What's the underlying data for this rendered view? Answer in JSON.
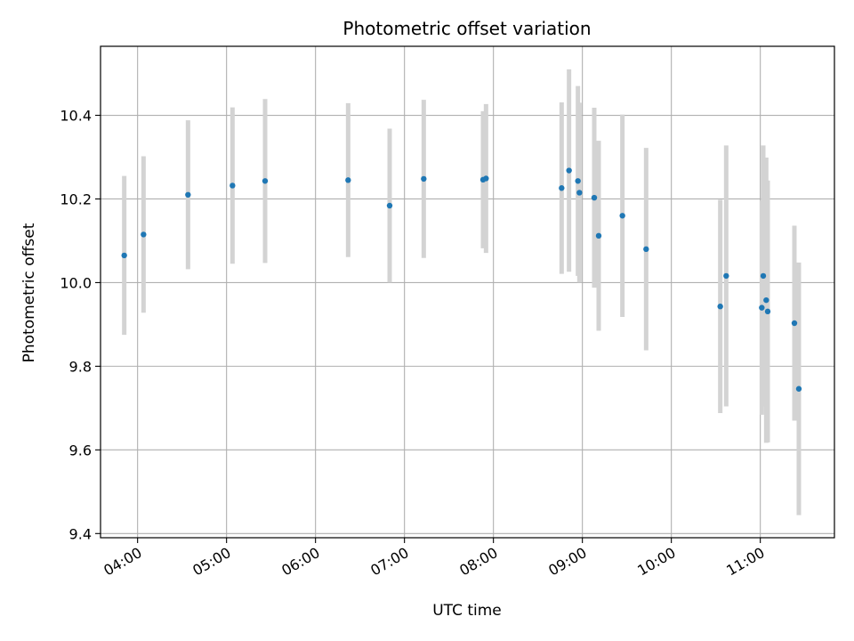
{
  "chart_data": {
    "type": "scatter",
    "title": "Photometric offset variation",
    "xlabel": "UTC time",
    "ylabel": "Photometric offset",
    "xlim": [
      "03:35",
      "11:50"
    ],
    "ylim": [
      9.39,
      10.565
    ],
    "x_ticks": [
      "04:00",
      "05:00",
      "06:00",
      "07:00",
      "08:00",
      "09:00",
      "10:00",
      "11:00"
    ],
    "y_ticks": [
      9.4,
      9.6,
      9.8,
      10.0,
      10.2,
      10.4
    ],
    "y_tick_labels": [
      "9.4",
      "9.6",
      "9.8",
      "10.0",
      "10.2",
      "10.4"
    ],
    "grid": true,
    "point_color": "#1f77b4",
    "errorbar_color": "#d3d3d3",
    "points": [
      {
        "t": "03:51",
        "y": 10.065,
        "err": 0.19
      },
      {
        "t": "04:04",
        "y": 10.115,
        "err": 0.187
      },
      {
        "t": "04:34",
        "y": 10.21,
        "err": 0.178
      },
      {
        "t": "05:04",
        "y": 10.232,
        "err": 0.187
      },
      {
        "t": "05:26",
        "y": 10.243,
        "err": 0.196
      },
      {
        "t": "06:22",
        "y": 10.245,
        "err": 0.184
      },
      {
        "t": "06:50",
        "y": 10.184,
        "err": 0.184
      },
      {
        "t": "07:13",
        "y": 10.248,
        "err": 0.189
      },
      {
        "t": "07:53",
        "y": 10.246,
        "err": 0.164
      },
      {
        "t": "07:55",
        "y": 10.249,
        "err": 0.178
      },
      {
        "t": "08:46",
        "y": 10.226,
        "err": 0.205
      },
      {
        "t": "08:51",
        "y": 10.268,
        "err": 0.242
      },
      {
        "t": "08:57",
        "y": 10.243,
        "err": 0.227
      },
      {
        "t": "08:58",
        "y": 10.215,
        "err": 0.215
      },
      {
        "t": "09:08",
        "y": 10.203,
        "err": 0.215
      },
      {
        "t": "09:11",
        "y": 10.112,
        "err": 0.227
      },
      {
        "t": "09:27",
        "y": 10.16,
        "err": 0.242
      },
      {
        "t": "09:43",
        "y": 10.08,
        "err": 0.242
      },
      {
        "t": "10:33",
        "y": 9.943,
        "err": 0.255
      },
      {
        "t": "10:37",
        "y": 10.016,
        "err": 0.312
      },
      {
        "t": "11:01",
        "y": 9.94,
        "err": 0.256
      },
      {
        "t": "11:02",
        "y": 10.016,
        "err": 0.312
      },
      {
        "t": "11:04",
        "y": 9.958,
        "err": 0.341
      },
      {
        "t": "11:05",
        "y": 9.931,
        "err": 0.313
      },
      {
        "t": "11:23",
        "y": 9.903,
        "err": 0.233
      },
      {
        "t": "11:26",
        "y": 9.746,
        "err": 0.302
      }
    ]
  }
}
